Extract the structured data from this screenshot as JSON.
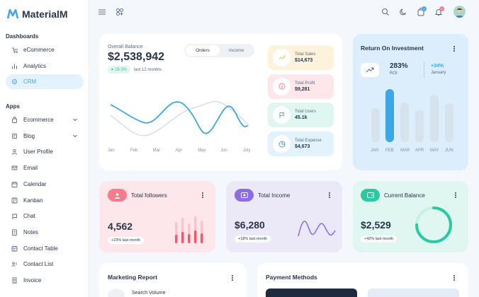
{
  "app": {
    "name": "MaterialM"
  },
  "sidebar": {
    "dashboards_label": "Dashboards",
    "apps_label": "Apps",
    "dashboards": [
      {
        "label": "eCommerce",
        "icon": "ecommerce-icon"
      },
      {
        "label": "Analytics",
        "icon": "analytics-icon"
      },
      {
        "label": "CRM",
        "icon": "crm-icon",
        "active": true
      }
    ],
    "apps": [
      {
        "label": "Ecommerce",
        "icon": "bag-icon",
        "chevron": true
      },
      {
        "label": "Blog",
        "icon": "blog-icon",
        "chevron": true
      },
      {
        "label": "User Profile",
        "icon": "user-icon"
      },
      {
        "label": "Email",
        "icon": "mail-icon"
      },
      {
        "label": "Calendar",
        "icon": "calendar-icon"
      },
      {
        "label": "Kanban",
        "icon": "kanban-icon"
      },
      {
        "label": "Chat",
        "icon": "chat-icon"
      },
      {
        "label": "Notes",
        "icon": "notes-icon"
      },
      {
        "label": "Contact Table",
        "icon": "table-icon"
      },
      {
        "label": "Contact List",
        "icon": "contacts-icon"
      },
      {
        "label": "Invoice",
        "icon": "invoice-icon"
      }
    ]
  },
  "topbar": {
    "cart_badge": "2",
    "notif_badge": "5"
  },
  "balance": {
    "title": "Overall Balance",
    "amount": "$2,538,942",
    "change": "16.3%",
    "period": "last 12 months",
    "tabs": [
      "Orders",
      "Income"
    ],
    "active_tab": "Orders",
    "months": [
      "Jan",
      "Feb",
      "Mar",
      "Apr",
      "May",
      "Jun",
      "July"
    ]
  },
  "stats": [
    {
      "label": "Total Sales",
      "value": "$14,673",
      "color": "#fdf3dc",
      "icon_color": "#f5c451",
      "icon": "trend-icon"
    },
    {
      "label": "Total Profit",
      "value": "$9,281",
      "color": "#fde7ea",
      "icon_color": "#f77b8a",
      "icon": "dollar-icon"
    },
    {
      "label": "Total Users",
      "value": "45.1k",
      "color": "#e0f7f1",
      "icon_color": "#2bc9a1",
      "icon": "flag-icon"
    },
    {
      "label": "Total Expense",
      "value": "$4,673",
      "color": "#e3f3fd",
      "icon_color": "#4a9fd6",
      "icon": "pie-icon"
    }
  ],
  "roi": {
    "title": "Return On Investment",
    "value": "283%",
    "value_label": "ROI",
    "change": "+34%",
    "change_label": "January",
    "months": [
      "JAN",
      "FEB",
      "MAR",
      "APR",
      "MAY",
      "JUN"
    ]
  },
  "followers": {
    "title": "Total followers",
    "value": "4,562",
    "change": "+23% last month"
  },
  "income": {
    "title": "Total Income",
    "value": "$6,280",
    "change": "+18% last month"
  },
  "current_balance": {
    "title": "Current Balance",
    "value": "$2,529",
    "change": "+42% last month",
    "progress": 0.75
  },
  "marketing": {
    "title": "Marketing Report",
    "item": "Search Volume"
  },
  "payment": {
    "title": "Payment Methods"
  }
}
